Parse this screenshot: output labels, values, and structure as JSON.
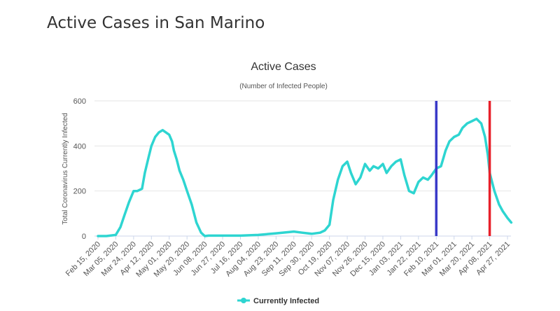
{
  "page": {
    "heading": "Active Cases in San Marino"
  },
  "chart_data": {
    "type": "line",
    "title": "Active Cases",
    "subtitle": "(Number of Infected People)",
    "ylabel": "Total Coronavirus Currently Infected",
    "xlabel": "",
    "ylim": [
      0,
      600
    ],
    "yticks": [
      0,
      200,
      400,
      600
    ],
    "grid": true,
    "legend_position": "bottom-center",
    "xticks": [
      "Feb 15, 2020",
      "Mar 05, 2020",
      "Mar 24, 2020",
      "Apr 12, 2020",
      "May 01, 2020",
      "May 20, 2020",
      "Jun 08, 2020",
      "Jun 27, 2020",
      "Jul 16, 2020",
      "Aug 04, 2020",
      "Aug 23, 2020",
      "Sep 11, 2020",
      "Sep 30, 2020",
      "Oct 19, 2020",
      "Nov 07, 2020",
      "Nov 26, 2020",
      "Dec 15, 2020",
      "Jan 03, 2021",
      "Jan 22, 2021",
      "Feb 10, 2021",
      "Mar 01, 2021",
      "Mar 20, 2021",
      "Apr 08, 2021",
      "Apr 27, 2021"
    ],
    "series": [
      {
        "name": "Currently Infected",
        "color": "#2ed5d1",
        "x": [
          "Feb 15, 2020",
          "Feb 24, 2020",
          "Mar 05, 2020",
          "Mar 10, 2020",
          "Mar 14, 2020",
          "Mar 19, 2020",
          "Mar 24, 2020",
          "Mar 28, 2020",
          "Apr 02, 2020",
          "Apr 05, 2020",
          "Apr 09, 2020",
          "Apr 12, 2020",
          "Apr 16, 2020",
          "Apr 20, 2020",
          "Apr 24, 2020",
          "May 01, 2020",
          "May 04, 2020",
          "May 06, 2020",
          "May 09, 2020",
          "May 12, 2020",
          "May 16, 2020",
          "May 20, 2020",
          "May 25, 2020",
          "May 30, 2020",
          "Jun 04, 2020",
          "Jun 08, 2020",
          "Jun 12, 2020",
          "Jun 17, 2020",
          "Jun 21, 2020",
          "Jun 27, 2020",
          "Jul 16, 2020",
          "Aug 04, 2020",
          "Aug 23, 2020",
          "Sep 11, 2020",
          "Sep 20, 2020",
          "Sep 30, 2020",
          "Oct 09, 2020",
          "Oct 14, 2020",
          "Oct 19, 2020",
          "Oct 23, 2020",
          "Oct 28, 2020",
          "Nov 02, 2020",
          "Nov 07, 2020",
          "Nov 11, 2020",
          "Nov 16, 2020",
          "Nov 21, 2020",
          "Nov 26, 2020",
          "Dec 01, 2020",
          "Dec 05, 2020",
          "Dec 10, 2020",
          "Dec 15, 2020",
          "Dec 19, 2020",
          "Dec 24, 2020",
          "Dec 29, 2020",
          "Jan 03, 2021",
          "Jan 07, 2021",
          "Jan 12, 2021",
          "Jan 17, 2021",
          "Jan 22, 2021",
          "Jan 27, 2021",
          "Feb 01, 2021",
          "Feb 05, 2021",
          "Feb 10, 2021",
          "Feb 15, 2021",
          "Feb 20, 2021",
          "Feb 24, 2021",
          "Mar 01, 2021",
          "Mar 06, 2021",
          "Mar 10, 2021",
          "Mar 15, 2021",
          "Mar 20, 2021",
          "Mar 25, 2021",
          "Mar 30, 2021",
          "Apr 03, 2021",
          "Apr 06, 2021",
          "Apr 08, 2021",
          "Apr 13, 2021",
          "Apr 18, 2021",
          "Apr 22, 2021",
          "Apr 27, 2021",
          "May 01, 2021"
        ],
        "values": [
          0,
          0,
          5,
          40,
          90,
          150,
          200,
          200,
          210,
          280,
          350,
          400,
          440,
          460,
          470,
          450,
          420,
          380,
          340,
          290,
          250,
          200,
          140,
          60,
          15,
          0,
          2,
          2,
          2,
          2,
          2,
          5,
          12,
          20,
          15,
          10,
          15,
          25,
          50,
          160,
          250,
          310,
          330,
          280,
          230,
          260,
          320,
          290,
          310,
          300,
          320,
          280,
          310,
          330,
          340,
          270,
          200,
          190,
          240,
          260,
          250,
          270,
          300,
          310,
          380,
          420,
          440,
          450,
          480,
          500,
          510,
          520,
          500,
          440,
          360,
          280,
          200,
          140,
          110,
          80,
          60
        ]
      }
    ],
    "markers": [
      {
        "x": "Feb 10, 2021",
        "color": "#3a3ac8"
      },
      {
        "x": "Apr 08, 2021",
        "color": "#e8202a"
      }
    ]
  }
}
